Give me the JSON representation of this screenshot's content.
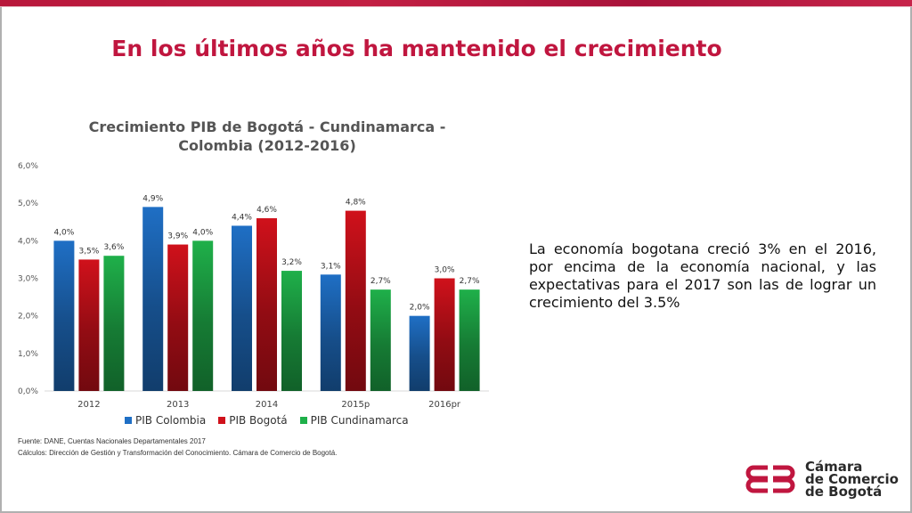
{
  "slide": {
    "title": "En los últimos años ha mantenido el crecimiento",
    "body_text": "La economía bogotana creció 3% en el 2016, por encima de la economía nacional, y las expectativas para el 2017 son las de lograr un crecimiento del 3.5%",
    "source_lines": [
      "Fuente: DANE, Cuentas Nacionales Departamentales 2017",
      "Cálculos: Dirección de Gestión y Transformación del Conocimiento. Cámara de Comercio de Bogotá."
    ],
    "logo_lines": [
      "Cámara",
      "de Comercio",
      "de Bogotá"
    ],
    "brand_color": "#c0163f"
  },
  "chart_data": {
    "type": "bar",
    "title_lines": [
      "Crecimiento PIB de Bogotá - Cundinamarca -",
      "Colombia (2012-2016)"
    ],
    "categories": [
      "2012",
      "2013",
      "2014",
      "2015p",
      "2016pr"
    ],
    "series": [
      {
        "name": "PIB Colombia",
        "color": "#1f6fc5",
        "values": [
          4.0,
          4.9,
          4.4,
          3.1,
          2.0
        ]
      },
      {
        "name": "PIB Bogotá",
        "color": "#d0111b",
        "values": [
          3.5,
          3.9,
          4.6,
          4.8,
          3.0
        ]
      },
      {
        "name": "PIB Cundinamarca",
        "color": "#1fb04a",
        "values": [
          3.6,
          4.0,
          3.2,
          2.7,
          2.7
        ]
      }
    ],
    "data_labels": [
      [
        "4,0%",
        "4,9%",
        "4,4%",
        "3,1%",
        "2,0%"
      ],
      [
        "3,5%",
        "3,9%",
        "4,6%",
        "4,8%",
        "3,0%"
      ],
      [
        "3,6%",
        "4,0%",
        "3,2%",
        "2,7%",
        "2,7%"
      ]
    ],
    "y_ticks": [
      0,
      1,
      2,
      3,
      4,
      5,
      6
    ],
    "y_tick_labels": [
      "0,0%",
      "1,0%",
      "2,0%",
      "3,0%",
      "4,0%",
      "5,0%",
      "6,0%"
    ],
    "ylim": [
      0,
      6
    ],
    "grid": false,
    "legend_position": "bottom"
  }
}
